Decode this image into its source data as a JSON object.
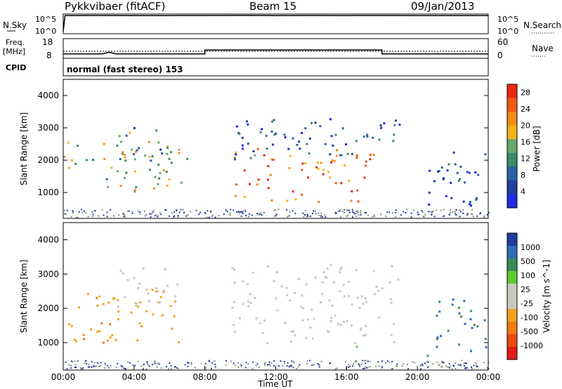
{
  "header": {
    "station": "Pykkvibaer (fitACF)",
    "beam": "Beam 15",
    "date": "09/Jan/2013"
  },
  "nsky_panel": {
    "left_label": "N.Sky",
    "left_ticks": [
      "10^5",
      "10^0"
    ],
    "right_label": "N.Search",
    "right_ticks": [
      "10^5",
      "10^0"
    ]
  },
  "freq_panel": {
    "left_label_1": "Freq.",
    "left_label_2": "[MHz]",
    "left_ticks": [
      "18",
      "8"
    ],
    "right_label": "Nave",
    "right_ticks": [
      "60",
      "0"
    ]
  },
  "cpid_panel": {
    "label": "CPID",
    "text": "normal (fast stereo) 153"
  },
  "colors": {
    "power_scale": [
      "#1f2ae0",
      "#1f3e9e",
      "#2a62a6",
      "#3d8a66",
      "#66a86a",
      "#f2b21a",
      "#f08b15",
      "#ef5a12",
      "#ea2a10"
    ],
    "velocity_scale": [
      "#1f3d9e",
      "#2d6eb8",
      "#3d8a55",
      "#5ecb32",
      "#c8c8c0",
      "#c8c8c0",
      "#f2a31a",
      "#ef7b12",
      "#ea4a10",
      "#e41a1a"
    ],
    "gray_range_cells": "#c8c8c0"
  },
  "chart_data": [
    {
      "type": "line",
      "name": "nsky-nsearch",
      "x": [
        0.0,
        0.1,
        0.5,
        2.0,
        4.0,
        6.0,
        8.0,
        10.0,
        12.0,
        14.0,
        16.0,
        18.0,
        20.0,
        22.0,
        24.0
      ],
      "nsky": [
        1,
        150000,
        150000,
        160000,
        150000,
        150000,
        160000,
        170000,
        150000,
        160000,
        150000,
        160000,
        150000,
        150000,
        150000
      ],
      "ylim": [
        "10^0",
        "10^5"
      ],
      "y2lim": [
        "10^0",
        "10^5"
      ]
    },
    {
      "type": "line",
      "name": "frequency-nave",
      "x": [
        0.0,
        2.2,
        2.6,
        3.0,
        8.0,
        8.0,
        18.0,
        18.0,
        24.0
      ],
      "freq": [
        9.5,
        9.5,
        10.5,
        9.5,
        9.5,
        12.0,
        12.0,
        9.5,
        9.5
      ],
      "nave_dotted": 19,
      "ylim": [
        8,
        18
      ],
      "y2lim": [
        0,
        60
      ]
    },
    {
      "type": "heatmap",
      "title": "",
      "xlabel": "Time UT",
      "ylabel": "Slant Range [km]",
      "xlim": [
        0,
        24
      ],
      "ylim": [
        200,
        4500
      ],
      "x_ticks": [
        "00:00",
        "04:00",
        "08:00",
        "12:00",
        "16:00",
        "20:00",
        "00:00"
      ],
      "y_ticks": [
        1000,
        2000,
        3000,
        4000
      ],
      "colorbar_label": "Power [dB]",
      "colorbar_ticks": [
        4,
        8,
        12,
        16,
        20,
        24,
        28
      ],
      "colorbar_range": [
        0,
        30
      ],
      "echo_regions": [
        {
          "t0": 0.0,
          "t1": 7.0,
          "r0": 1000,
          "r1": 2600,
          "power": 16
        },
        {
          "t0": 3.0,
          "t1": 6.0,
          "r0": 2000,
          "r1": 3200,
          "power": 12
        },
        {
          "t0": 9.5,
          "t1": 17.5,
          "r0": 700,
          "r1": 2400,
          "power": 22
        },
        {
          "t0": 9.5,
          "t1": 19.0,
          "r0": 2000,
          "r1": 3300,
          "power": 6
        },
        {
          "t0": 20.5,
          "t1": 24.0,
          "r0": 500,
          "r1": 2300,
          "power": 6
        }
      ]
    },
    {
      "type": "heatmap",
      "title": "",
      "xlabel": "Time UT",
      "ylabel": "Slant Range [km]",
      "xlim": [
        0,
        24
      ],
      "ylim": [
        200,
        4500
      ],
      "x_ticks": [
        "00:00",
        "04:00",
        "08:00",
        "12:00",
        "16:00",
        "20:00",
        "00:00"
      ],
      "y_ticks": [
        1000,
        2000,
        3000,
        4000
      ],
      "colorbar_label": "Velocity [m s^-1]",
      "colorbar_ticks": [
        1000,
        500,
        100,
        25,
        -25,
        -100,
        -500,
        -1000
      ],
      "echo_regions": [
        {
          "t0": 0.0,
          "t1": 6.5,
          "r0": 1000,
          "r1": 2600,
          "velocity": -100
        },
        {
          "t0": 3.0,
          "t1": 6.5,
          "r0": 2000,
          "r1": 3200,
          "velocity": 0
        },
        {
          "t0": 9.5,
          "t1": 19.0,
          "r0": 1000,
          "r1": 3300,
          "velocity": 0
        },
        {
          "t0": 16.0,
          "t1": 17.0,
          "r0": 900,
          "r1": 1200,
          "velocity": 100
        },
        {
          "t0": 20.5,
          "t1": 24.0,
          "r0": 600,
          "r1": 2300,
          "velocity": 500
        }
      ]
    }
  ]
}
